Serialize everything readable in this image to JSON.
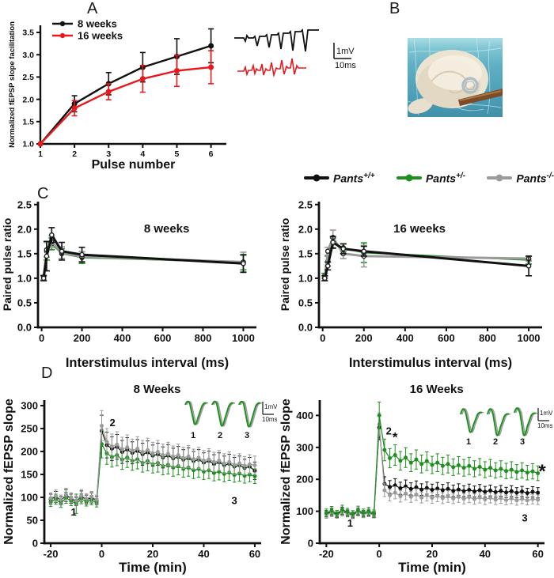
{
  "panels": {
    "a": "A",
    "b": "B",
    "c": "C",
    "d": "D"
  },
  "colors": {
    "black": "#111111",
    "red": "#e8191d",
    "green": "#1f8f1f",
    "gray": "#9b9b9b"
  },
  "legend_top": {
    "entries": [
      {
        "base": "Pants",
        "sup": "+/+",
        "color": "#111111"
      },
      {
        "base": "Pants",
        "sup": "+/-",
        "color": "#1f8f1f"
      },
      {
        "base": "Pants",
        "sup": "-/-",
        "color": "#9b9b9b"
      }
    ]
  },
  "traces_a": {
    "scale_v": "1mV",
    "scale_h": "10ms"
  },
  "insets_d": {
    "labels": [
      "1",
      "2",
      "3"
    ],
    "scale_v": "1mV",
    "scale_h": "10ms"
  },
  "chart_data": [
    {
      "id": "a",
      "type": "line",
      "title": "",
      "xlabel": "Pulse number",
      "ylabel": "Normalized fEPSP slope facilitation",
      "xlim": [
        1,
        6.45
      ],
      "ylim": [
        1.0,
        3.66
      ],
      "xticks": [
        1,
        2,
        3,
        4,
        5,
        6
      ],
      "xtick_labels": [
        "1",
        "2",
        "3",
        "4",
        "5",
        "6"
      ],
      "yticks": [
        1.0,
        1.5,
        2.0,
        2.5,
        3.0,
        3.5
      ],
      "ytick_labels": [
        "1.0",
        "1.5",
        "2.0",
        "2.5",
        "3.0",
        "3.5"
      ],
      "legend": true,
      "series": [
        {
          "name": "8 weeks",
          "color": "#111111",
          "x": [
            1,
            2,
            3,
            4,
            5,
            6
          ],
          "y": [
            1.0,
            1.9,
            2.35,
            2.72,
            2.96,
            3.2
          ],
          "e": [
            0.0,
            0.18,
            0.25,
            0.33,
            0.4,
            0.38
          ]
        },
        {
          "name": "16 weeks",
          "color": "#e8191d",
          "x": [
            1,
            2,
            3,
            4,
            5,
            6
          ],
          "y": [
            1.0,
            1.8,
            2.17,
            2.46,
            2.64,
            2.72
          ],
          "e": [
            0.0,
            0.17,
            0.18,
            0.3,
            0.35,
            0.37
          ]
        }
      ],
      "annotations": []
    },
    {
      "id": "c1",
      "type": "line",
      "title": "",
      "xlabel": "Interstimulus interval (ms)",
      "ylabel": "Paired pulse ratio",
      "xlim": [
        -18,
        1065
      ],
      "ylim": [
        0,
        2.56
      ],
      "xticks": [
        0,
        200,
        400,
        600,
        800,
        1000
      ],
      "xtick_labels": [
        "0",
        "200",
        "400",
        "600",
        "800",
        "1000"
      ],
      "yticks": [
        0,
        0.5,
        1.0,
        1.5,
        2.0,
        2.5
      ],
      "ytick_labels": [
        "0.0",
        "0.5",
        "1.0",
        "1.5",
        "2.0",
        "2.5"
      ],
      "series": [
        {
          "name": "Pants+/-",
          "color": "#1f8f1f",
          "x": [
            10,
            25,
            50,
            100,
            200,
            1000
          ],
          "y": [
            1.0,
            1.55,
            1.7,
            1.5,
            1.42,
            1.32
          ],
          "e": [
            0.05,
            0.18,
            0.12,
            0.1,
            0.12,
            0.15
          ]
        },
        {
          "name": "Pants-/-",
          "color": "#9b9b9b",
          "x": [
            10,
            25,
            50,
            100,
            200,
            1000
          ],
          "y": [
            1.02,
            1.58,
            1.74,
            1.52,
            1.44,
            1.33
          ],
          "e": [
            0.05,
            0.15,
            0.12,
            0.12,
            0.1,
            0.2
          ]
        },
        {
          "name": "Pants+/+",
          "color": "#111111",
          "x": [
            10,
            25,
            50,
            100,
            200,
            1000
          ],
          "y": [
            1.0,
            1.45,
            1.88,
            1.55,
            1.48,
            1.3
          ],
          "e": [
            0.05,
            0.3,
            0.15,
            0.18,
            0.15,
            0.18
          ]
        }
      ],
      "annotations": [
        {
          "x": 620,
          "y": 1.93,
          "text": "8 weeks",
          "size": 15
        }
      ]
    },
    {
      "id": "c2",
      "type": "line",
      "title": "",
      "xlabel": "Interstimulus interval (ms)",
      "ylabel": "Paired pulse ratio",
      "xlim": [
        -18,
        1065
      ],
      "ylim": [
        0,
        2.56
      ],
      "xticks": [
        0,
        200,
        400,
        600,
        800,
        1000
      ],
      "xtick_labels": [
        "0",
        "200",
        "400",
        "600",
        "800",
        "1000"
      ],
      "yticks": [
        0,
        0.5,
        1.0,
        1.5,
        2.0,
        2.5
      ],
      "ytick_labels": [
        "0.0",
        "0.5",
        "1.0",
        "1.5",
        "2.0",
        "2.5"
      ],
      "series": [
        {
          "name": "Pants+/-",
          "color": "#1f8f1f",
          "x": [
            10,
            25,
            50,
            100,
            200,
            1000
          ],
          "y": [
            1.05,
            1.35,
            1.72,
            1.62,
            1.52,
            1.37
          ],
          "e": [
            0.05,
            0.1,
            0.1,
            0.08,
            0.2,
            0.08
          ]
        },
        {
          "name": "Pants-/-",
          "color": "#9b9b9b",
          "x": [
            10,
            25,
            50,
            100,
            200,
            1000
          ],
          "y": [
            1.0,
            1.55,
            1.83,
            1.5,
            1.45,
            1.4
          ],
          "e": [
            0.05,
            0.08,
            0.15,
            0.1,
            0.22,
            0.05
          ]
        },
        {
          "name": "Pants+/+",
          "color": "#111111",
          "x": [
            10,
            25,
            50,
            100,
            200,
            1000
          ],
          "y": [
            1.0,
            1.25,
            1.73,
            1.6,
            1.55,
            1.25
          ],
          "e": [
            0.05,
            0.08,
            0.12,
            0.1,
            0.1,
            0.2
          ]
        }
      ],
      "annotations": [
        {
          "x": 470,
          "y": 1.93,
          "text": "16 weeks",
          "size": 15
        }
      ]
    },
    {
      "id": "d1",
      "type": "line",
      "title": "8 Weeks",
      "xlabel": "Time (min)",
      "ylabel": "Normalized fEPSP slope",
      "xlim": [
        -22.5,
        62.5
      ],
      "ylim": [
        0,
        312
      ],
      "xticks": [
        -20,
        0,
        20,
        40,
        60
      ],
      "xtick_labels": [
        "-20",
        "0",
        "20",
        "40",
        "60"
      ],
      "yticks": [
        0,
        50,
        100,
        150,
        200,
        250,
        300
      ],
      "ytick_labels": [
        "0",
        "50",
        "100",
        "150",
        "200",
        "250",
        "300"
      ],
      "x": [
        -20,
        -18,
        -16,
        -14,
        -12,
        -10,
        -8,
        -6,
        -4,
        -2,
        0,
        2,
        4,
        6,
        8,
        10,
        12,
        14,
        16,
        18,
        20,
        22,
        24,
        26,
        28,
        30,
        32,
        34,
        36,
        38,
        40,
        42,
        44,
        46,
        48,
        50,
        52,
        54,
        56,
        58,
        60
      ],
      "series": [
        {
          "name": "Pants+/+",
          "color": "#111111",
          "y": [
            96,
            101,
            93,
            104,
            97,
            91,
            102,
            95,
            99,
            93,
            245,
            214,
            206,
            210,
            199,
            204,
            197,
            201,
            194,
            198,
            191,
            194,
            187,
            191,
            185,
            188,
            182,
            185,
            179,
            182,
            176,
            179,
            173,
            176,
            170,
            173,
            167,
            170,
            164,
            167,
            158
          ],
          "e": [
            11,
            12,
            9,
            13,
            10,
            9,
            12,
            10,
            11,
            9,
            34,
            28,
            26,
            27,
            25,
            26,
            24,
            25,
            24,
            25,
            23,
            24,
            23,
            24,
            22,
            23,
            22,
            23,
            21,
            22,
            21,
            22,
            20,
            21,
            20,
            21,
            20,
            20,
            19,
            20,
            19
          ]
        },
        {
          "name": "Pants+/-",
          "color": "#1f8f1f",
          "y": [
            90,
            96,
            87,
            99,
            92,
            86,
            97,
            90,
            94,
            88,
            216,
            196,
            188,
            192,
            182,
            187,
            179,
            183,
            175,
            179,
            172,
            175,
            168,
            171,
            165,
            168,
            162,
            165,
            159,
            162,
            156,
            159,
            153,
            156,
            151,
            154,
            149,
            152,
            147,
            150,
            146
          ],
          "e": [
            10,
            11,
            9,
            12,
            10,
            21,
            11,
            9,
            10,
            9,
            30,
            24,
            22,
            23,
            21,
            22,
            20,
            21,
            20,
            21,
            19,
            20,
            19,
            20,
            19,
            19,
            18,
            19,
            18,
            18,
            17,
            18,
            17,
            18,
            17,
            17,
            16,
            17,
            16,
            16,
            16
          ]
        },
        {
          "name": "Pants-/-",
          "color": "#9b9b9b",
          "y": [
            98,
            103,
            95,
            106,
            99,
            93,
            104,
            97,
            101,
            95,
            256,
            221,
            211,
            215,
            205,
            209,
            202,
            206,
            199,
            203,
            196,
            199,
            192,
            195,
            189,
            192,
            186,
            189,
            183,
            186,
            180,
            183,
            177,
            180,
            174,
            177,
            171,
            174,
            169,
            172,
            170
          ],
          "e": [
            12,
            13,
            10,
            14,
            11,
            10,
            13,
            11,
            12,
            10,
            33,
            29,
            27,
            28,
            26,
            27,
            25,
            26,
            25,
            26,
            24,
            25,
            24,
            25,
            23,
            24,
            23,
            24,
            22,
            23,
            22,
            23,
            21,
            22,
            21,
            22,
            21,
            21,
            20,
            21,
            20
          ]
        }
      ],
      "annotations": [
        {
          "x": -11,
          "y": 60,
          "text": "1",
          "size": 13
        },
        {
          "x": 4.2,
          "y": 255,
          "text": "2",
          "size": 13
        },
        {
          "x": 52,
          "y": 85,
          "text": "3",
          "size": 13
        }
      ]
    },
    {
      "id": "d2",
      "type": "line",
      "title": "16 Weeks",
      "xlabel": "Time (min)",
      "ylabel": "Normalized fEPSP slope",
      "xlim": [
        -22.5,
        62.5
      ],
      "ylim": [
        0,
        448
      ],
      "xticks": [
        -20,
        0,
        20,
        40,
        60
      ],
      "xtick_labels": [
        "-20",
        "0",
        "20",
        "40",
        "60"
      ],
      "yticks": [
        0,
        100,
        200,
        300,
        400
      ],
      "ytick_labels": [
        "0",
        "100",
        "200",
        "300",
        "400"
      ],
      "x": [
        -20,
        -18,
        -16,
        -14,
        -12,
        -10,
        -8,
        -6,
        -4,
        -2,
        0,
        2,
        4,
        6,
        8,
        10,
        12,
        14,
        16,
        18,
        20,
        22,
        24,
        26,
        28,
        30,
        32,
        34,
        36,
        38,
        40,
        42,
        44,
        46,
        48,
        50,
        52,
        54,
        56,
        58,
        60
      ],
      "series": [
        {
          "name": "Pants+/+",
          "color": "#111111",
          "y": [
            92,
            98,
            89,
            101,
            94,
            88,
            99,
            92,
            96,
            90,
            362,
            186,
            176,
            181,
            172,
            178,
            170,
            175,
            168,
            173,
            167,
            171,
            166,
            170,
            164,
            168,
            163,
            167,
            162,
            166,
            161,
            165,
            160,
            164,
            159,
            163,
            158,
            162,
            157,
            161,
            158
          ],
          "e": [
            10,
            11,
            9,
            12,
            10,
            9,
            11,
            10,
            10,
            9,
            38,
            22,
            20,
            21,
            19,
            20,
            19,
            20,
            18,
            19,
            18,
            19,
            18,
            19,
            18,
            18,
            17,
            18,
            17,
            18,
            17,
            17,
            16,
            17,
            16,
            17,
            16,
            16,
            15,
            16,
            16
          ]
        },
        {
          "name": "Pants-/-",
          "color": "#9b9b9b",
          "y": [
            89,
            95,
            87,
            98,
            92,
            86,
            97,
            90,
            94,
            88,
            372,
            166,
            150,
            158,
            147,
            155,
            145,
            152,
            143,
            150,
            142,
            148,
            141,
            146,
            140,
            145,
            139,
            144,
            138,
            143,
            137,
            142,
            136,
            141,
            135,
            140,
            134,
            139,
            134,
            138,
            136
          ],
          "e": [
            11,
            12,
            9,
            13,
            10,
            9,
            12,
            10,
            11,
            9,
            36,
            20,
            18,
            19,
            18,
            19,
            17,
            18,
            17,
            18,
            17,
            18,
            17,
            18,
            16,
            17,
            16,
            17,
            16,
            17,
            16,
            16,
            15,
            16,
            15,
            16,
            15,
            15,
            14,
            15,
            15
          ]
        },
        {
          "name": "Pants+/-",
          "color": "#1f8f1f",
          "y": [
            95,
            102,
            93,
            105,
            98,
            92,
            103,
            96,
            100,
            94,
            400,
            292,
            266,
            276,
            258,
            268,
            252,
            262,
            248,
            257,
            245,
            252,
            242,
            248,
            238,
            244,
            236,
            242,
            233,
            239,
            230,
            236,
            228,
            233,
            226,
            230,
            223,
            228,
            221,
            225,
            219
          ],
          "e": [
            12,
            13,
            10,
            14,
            11,
            10,
            13,
            11,
            12,
            10,
            42,
            34,
            30,
            32,
            29,
            31,
            28,
            30,
            28,
            29,
            27,
            28,
            27,
            28,
            26,
            27,
            26,
            27,
            25,
            26,
            25,
            26,
            24,
            25,
            24,
            25,
            23,
            24,
            23,
            24,
            23
          ]
        }
      ],
      "annotations": [
        {
          "x": -11,
          "y": 52,
          "text": "1",
          "size": 13
        },
        {
          "x": 3.6,
          "y": 340,
          "text": "2",
          "size": 13
        },
        {
          "x": 6.0,
          "y": 318,
          "text": "*",
          "size": 17
        },
        {
          "x": 55,
          "y": 68,
          "text": "3",
          "size": 13
        },
        {
          "x": 61.6,
          "y": 205,
          "text": "*",
          "size": 24
        }
      ]
    }
  ]
}
